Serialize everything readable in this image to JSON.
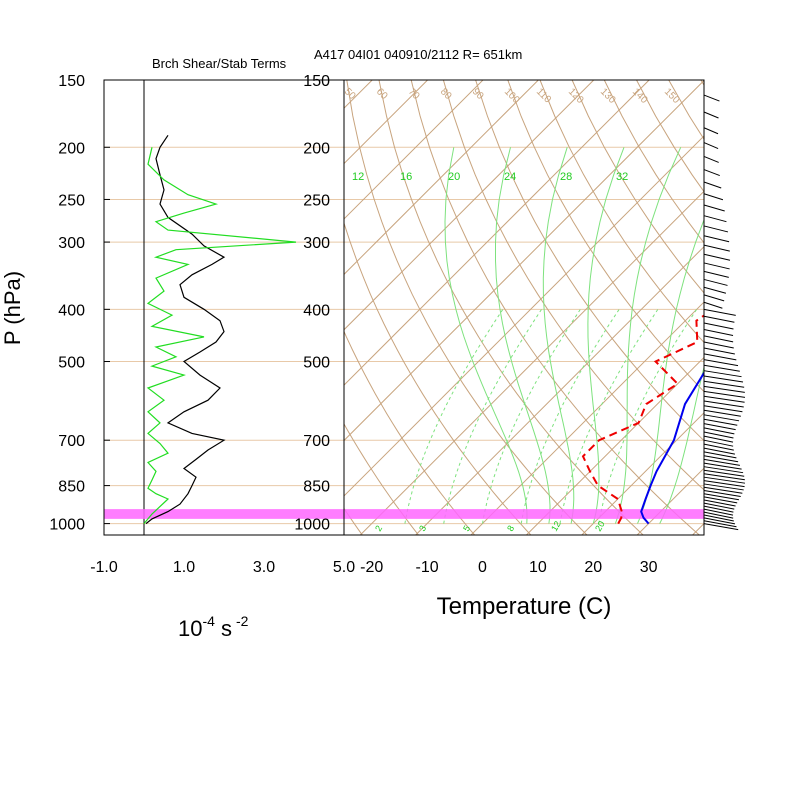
{
  "chart_data": [
    {
      "type": "line",
      "panel": "left",
      "title": "Brch Shear/Stab Terms",
      "xlabel": "10",
      "xlabel_exponent": "-4",
      "xlabel_unit": "s",
      "xlabel_unit_exponent": "-2",
      "ylabel": "P (hPa)",
      "xlim": [
        -1.0,
        5.0
      ],
      "xtick_labels": [
        "-1.0",
        "1.0",
        "3.0",
        "5.0"
      ],
      "xticks": [
        -1.0,
        1.0,
        3.0,
        5.0
      ],
      "y_scale": "log",
      "ylim": [
        1050,
        150
      ],
      "ytick_labels": [
        "150",
        "200",
        "250",
        "300",
        "400",
        "500",
        "700",
        "850",
        "1000"
      ],
      "yticks": [
        150,
        200,
        250,
        300,
        400,
        500,
        700,
        850,
        1000
      ],
      "series": [
        {
          "color": "#000000",
          "points": [
            [
              0.6,
              190
            ],
            [
              0.4,
              200
            ],
            [
              0.3,
              210
            ],
            [
              0.4,
              225
            ],
            [
              0.5,
              240
            ],
            [
              0.4,
              255
            ],
            [
              0.6,
              270
            ],
            [
              1.2,
              290
            ],
            [
              1.5,
              305
            ],
            [
              2.0,
              320
            ],
            [
              1.7,
              330
            ],
            [
              1.2,
              345
            ],
            [
              0.9,
              360
            ],
            [
              1.0,
              380
            ],
            [
              1.5,
              400
            ],
            [
              1.9,
              420
            ],
            [
              2.0,
              440
            ],
            [
              1.8,
              460
            ],
            [
              1.4,
              480
            ],
            [
              1.0,
              500
            ],
            [
              1.4,
              530
            ],
            [
              1.9,
              560
            ],
            [
              1.6,
              590
            ],
            [
              1.0,
              620
            ],
            [
              0.6,
              650
            ],
            [
              1.2,
              680
            ],
            [
              2.0,
              700
            ],
            [
              1.6,
              730
            ],
            [
              1.3,
              760
            ],
            [
              1.0,
              790
            ],
            [
              1.3,
              820
            ],
            [
              1.2,
              850
            ],
            [
              1.1,
              880
            ],
            [
              0.9,
              920
            ],
            [
              0.6,
              950
            ],
            [
              0.2,
              980
            ],
            [
              0.05,
              1000
            ]
          ]
        },
        {
          "color": "#22dd22",
          "points": [
            [
              0.2,
              200
            ],
            [
              0.1,
              215
            ],
            [
              0.5,
              230
            ],
            [
              1.1,
              245
            ],
            [
              1.8,
              255
            ],
            [
              1.0,
              265
            ],
            [
              0.3,
              275
            ],
            [
              0.6,
              285
            ],
            [
              3.8,
              300
            ],
            [
              0.8,
              310
            ],
            [
              0.3,
              320
            ],
            [
              1.1,
              330
            ],
            [
              0.3,
              350
            ],
            [
              0.5,
              370
            ],
            [
              0.1,
              390
            ],
            [
              0.7,
              410
            ],
            [
              0.2,
              430
            ],
            [
              1.5,
              450
            ],
            [
              0.3,
              470
            ],
            [
              0.8,
              490
            ],
            [
              0.2,
              510
            ],
            [
              1.0,
              530
            ],
            [
              0.1,
              560
            ],
            [
              0.5,
              590
            ],
            [
              0.1,
              620
            ],
            [
              0.4,
              650
            ],
            [
              0.1,
              680
            ],
            [
              0.4,
              710
            ],
            [
              0.6,
              740
            ],
            [
              0.1,
              770
            ],
            [
              0.3,
              800
            ],
            [
              0.2,
              830
            ],
            [
              0.1,
              860
            ],
            [
              0.3,
              880
            ],
            [
              0.6,
              900
            ],
            [
              0.2,
              960
            ],
            [
              0.0,
              1000
            ]
          ]
        }
      ]
    },
    {
      "type": "line",
      "panel": "right",
      "subtype": "skew-T log-p",
      "title": "A417 04I01 040910/2112 R= 651km",
      "xlabel": "Temperature (C)",
      "xlim": [
        -25,
        40
      ],
      "xtick_labels": [
        "-20",
        "-10",
        "0",
        "10",
        "20",
        "30"
      ],
      "xticks": [
        -20,
        -10,
        0,
        10,
        20,
        30
      ],
      "ylim": [
        1050,
        150
      ],
      "ytick_labels": [
        "150",
        "200",
        "250",
        "300",
        "400",
        "500",
        "700",
        "850",
        "1000"
      ],
      "yticks": [
        150,
        200,
        250,
        300,
        400,
        500,
        700,
        850,
        1000
      ],
      "grid": true,
      "highlight_band_hpa": [
        940,
        980
      ],
      "highlight_color": "#ff66ff",
      "mixing_ratio_labels": [
        "2",
        "3",
        "5",
        "8",
        "12",
        "20"
      ],
      "top_isotherm_labels": [
        "12",
        "16",
        "20",
        "24",
        "28",
        "32"
      ],
      "dry_adiabat_labels": [
        "50",
        "60",
        "70",
        "80",
        "90",
        "100",
        "110",
        "120",
        "130",
        "140",
        "150"
      ],
      "series": [
        {
          "name": "",
          "color": "#0000ee",
          "style": "solid",
          "points": [
            [
              30,
              1000
            ],
            [
              28,
              975
            ],
            [
              26.5,
              950
            ],
            [
              25,
              900
            ],
            [
              23.5,
              850
            ],
            [
              22,
              800
            ],
            [
              19.5,
              700
            ],
            [
              15,
              600
            ],
            [
              12,
              500
            ],
            [
              7,
              400
            ],
            [
              2,
              350
            ],
            [
              -2,
              300
            ],
            [
              -7,
              250
            ],
            [
              -12,
              210
            ],
            [
              -14,
              190
            ]
          ]
        },
        {
          "name": "",
          "color": "#ee0000",
          "style": "dashed",
          "points": [
            [
              24.5,
              1000
            ],
            [
              24,
              975
            ],
            [
              23,
              950
            ],
            [
              20,
              900
            ],
            [
              14,
              850
            ],
            [
              10,
              800
            ],
            [
              6,
              750
            ],
            [
              6,
              700
            ],
            [
              10,
              650
            ],
            [
              8,
              600
            ],
            [
              10,
              550
            ],
            [
              2,
              500
            ],
            [
              6,
              460
            ],
            [
              2,
              420
            ],
            [
              4,
              380
            ],
            [
              -2,
              340
            ],
            [
              -4,
              320
            ],
            [
              -6,
              300
            ],
            [
              -10,
              260
            ],
            [
              -15,
              230
            ],
            [
              -18,
              210
            ]
          ]
        }
      ]
    }
  ]
}
